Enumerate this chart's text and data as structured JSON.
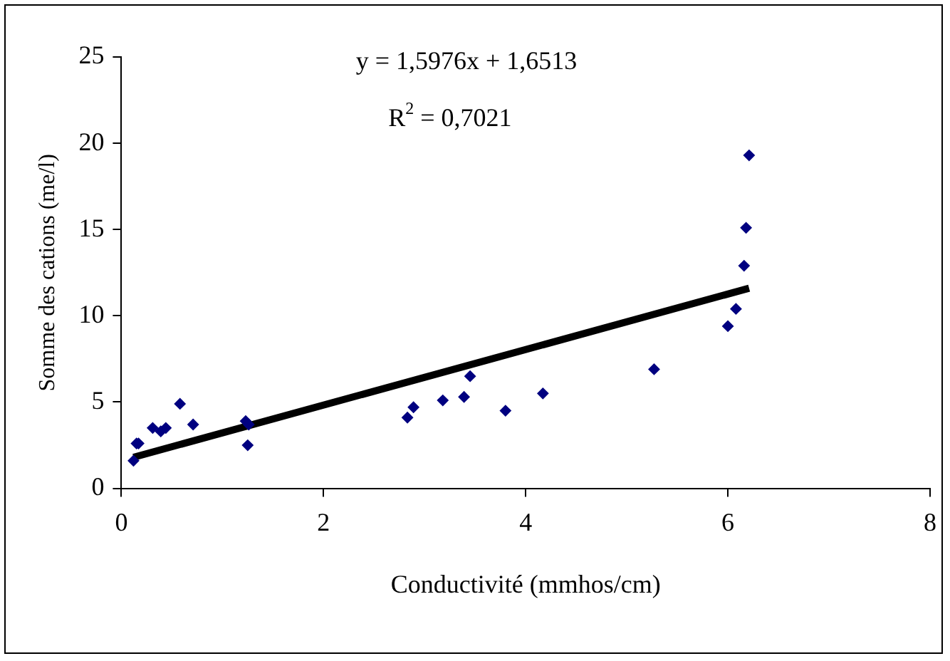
{
  "chart_data": {
    "type": "scatter",
    "xlabel": "Conductivité (mmhos/cm)",
    "ylabel": "Somme des cations (me/l)",
    "annotations": [
      "y = 1,5976x + 1,6513",
      "R$^{2}$ = 0,7021"
    ],
    "xlim": [
      0,
      8
    ],
    "xticks": [
      0,
      2,
      4,
      6,
      8
    ],
    "ylim": [
      0,
      25
    ],
    "yticks": [
      0,
      5,
      10,
      15,
      20,
      25
    ],
    "grid": false,
    "legend": false,
    "series": [
      {
        "color": "#000080",
        "marker": "diamond",
        "x": [
          0.12,
          0.15,
          0.17,
          0.31,
          0.39,
          0.44,
          0.58,
          0.71,
          1.23,
          1.26,
          1.25,
          2.83,
          2.89,
          3.18,
          3.39,
          3.45,
          3.8,
          4.17,
          5.27,
          6.0,
          6.08,
          6.16,
          6.18,
          6.21
        ],
        "values": [
          1.6,
          2.6,
          2.6,
          3.5,
          3.3,
          3.5,
          4.9,
          3.7,
          3.9,
          3.7,
          2.5,
          4.1,
          4.7,
          5.1,
          5.3,
          6.5,
          4.5,
          5.5,
          6.9,
          9.4,
          10.4,
          12.9,
          15.1,
          19.3
        ]
      },
      {
        "type": "line",
        "color": "#000000",
        "marker": "none",
        "x": [
          0.12,
          6.21
        ],
        "values": [
          1.8,
          11.6
        ]
      }
    ]
  }
}
